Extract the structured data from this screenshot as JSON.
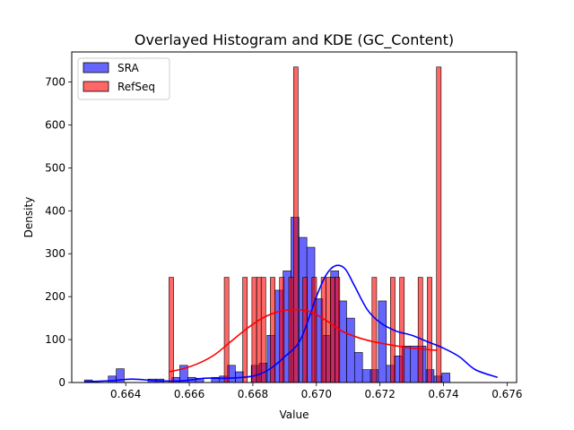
{
  "chart_data": {
    "type": "histogram",
    "title": "Overlayed Histogram and KDE (GC_Content)",
    "xlabel": "Value",
    "ylabel": "Density",
    "xlim": [
      0.6623,
      0.6763
    ],
    "ylim": [
      0,
      770
    ],
    "xticks": [
      0.664,
      0.666,
      0.668,
      0.67,
      0.672,
      0.674,
      0.676
    ],
    "xtick_labels": [
      "0.664",
      "0.666",
      "0.668",
      "0.670",
      "0.672",
      "0.674",
      "0.676"
    ],
    "yticks": [
      0,
      100,
      200,
      300,
      400,
      500,
      600,
      700
    ],
    "ytick_labels": [
      "0",
      "100",
      "200",
      "300",
      "400",
      "500",
      "600",
      "700"
    ],
    "grid": false,
    "legend_position": "top-left",
    "series": [
      {
        "name": "SRA",
        "color": "#0000ff",
        "bin_width": 0.00025,
        "bin_start": 0.6627,
        "bar_values": [
          6,
          0,
          0,
          15,
          32,
          0,
          0,
          0,
          8,
          8,
          0,
          12,
          40,
          12,
          10,
          0,
          12,
          15,
          40,
          25,
          0,
          40,
          45,
          110,
          215,
          260,
          385,
          338,
          315,
          195,
          110,
          260,
          190,
          150,
          70,
          30,
          30,
          190,
          40,
          62,
          85,
          85,
          85,
          30,
          15,
          22
        ],
        "kde_x": [
          0.6627,
          0.6635,
          0.6642,
          0.665,
          0.6658,
          0.6665,
          0.6672,
          0.668,
          0.6685,
          0.669,
          0.6695,
          0.67,
          0.6703,
          0.6706,
          0.6709,
          0.6712,
          0.6716,
          0.672,
          0.6725,
          0.673,
          0.6735,
          0.674,
          0.6745,
          0.675,
          0.6757
        ],
        "kde_y": [
          2,
          4,
          8,
          4,
          4,
          10,
          10,
          15,
          30,
          60,
          100,
          200,
          250,
          272,
          265,
          225,
          170,
          140,
          120,
          110,
          95,
          80,
          60,
          30,
          12
        ]
      },
      {
        "name": "RefSeq",
        "color": "#ff0000",
        "bin_width": 0.000145,
        "bars": [
          {
            "x": 0.66536,
            "y": 245
          },
          {
            "x": 0.6671,
            "y": 245
          },
          {
            "x": 0.66768,
            "y": 245
          },
          {
            "x": 0.66797,
            "y": 245
          },
          {
            "x": 0.66812,
            "y": 245
          },
          {
            "x": 0.66826,
            "y": 245
          },
          {
            "x": 0.66855,
            "y": 245
          },
          {
            "x": 0.66884,
            "y": 245
          },
          {
            "x": 0.66913,
            "y": 245
          },
          {
            "x": 0.66928,
            "y": 735
          },
          {
            "x": 0.66957,
            "y": 245
          },
          {
            "x": 0.66986,
            "y": 245
          },
          {
            "x": 0.67015,
            "y": 245
          },
          {
            "x": 0.6703,
            "y": 245
          },
          {
            "x": 0.67044,
            "y": 245
          },
          {
            "x": 0.67059,
            "y": 245
          },
          {
            "x": 0.67175,
            "y": 245
          },
          {
            "x": 0.67233,
            "y": 245
          },
          {
            "x": 0.67262,
            "y": 245
          },
          {
            "x": 0.6732,
            "y": 245
          },
          {
            "x": 0.67349,
            "y": 245
          },
          {
            "x": 0.67378,
            "y": 735
          }
        ],
        "kde_x": [
          0.66536,
          0.6658,
          0.6663,
          0.6668,
          0.6673,
          0.6678,
          0.6683,
          0.6688,
          0.6693,
          0.6698,
          0.6703,
          0.6708,
          0.6713,
          0.6718,
          0.6723,
          0.6728,
          0.6733,
          0.6738
        ],
        "kde_y": [
          25,
          32,
          45,
          65,
          95,
          125,
          150,
          165,
          170,
          165,
          145,
          120,
          105,
          95,
          88,
          82,
          78,
          75
        ]
      }
    ]
  }
}
